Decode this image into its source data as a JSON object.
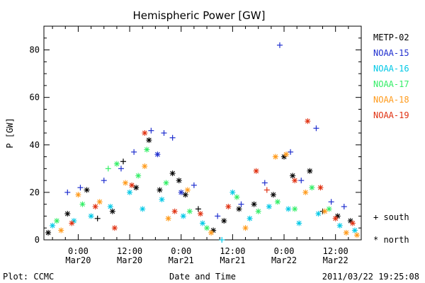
{
  "chart_data": {
    "type": "scatter",
    "title": "Hemispheric Power [GW]",
    "xlabel": "Date and Time",
    "ylabel": "P [GW]",
    "xlim": [
      "2011-03-19 16:00",
      "2011-03-22 18:00"
    ],
    "ylim": [
      0,
      90
    ],
    "y_ticks": [
      0,
      20,
      40,
      60,
      80
    ],
    "x_ticks": [
      {
        "x": "2011-03-20 00:00",
        "line1": "0:00",
        "line2": "Mar20"
      },
      {
        "x": "2011-03-20 12:00",
        "line1": "12:00",
        "line2": "Mar20"
      },
      {
        "x": "2011-03-21 00:00",
        "line1": "0:00",
        "line2": "Mar21"
      },
      {
        "x": "2011-03-21 12:00",
        "line1": "12:00",
        "line2": "Mar21"
      },
      {
        "x": "2011-03-22 00:00",
        "line1": "0:00",
        "line2": "Mar22"
      },
      {
        "x": "2011-03-22 12:00",
        "line1": "12:00",
        "line2": "Mar22"
      }
    ],
    "legend_position": "right",
    "marker_legend": [
      {
        "symbol": "+",
        "label": "south"
      },
      {
        "symbol": "*",
        "label": "north"
      }
    ],
    "series": [
      {
        "name": "METP-02",
        "color": "#000000",
        "points": [
          {
            "x": "2011-03-19 17:00",
            "y": 3,
            "m": "*"
          },
          {
            "x": "2011-03-19 21:30",
            "y": 11,
            "m": "*"
          },
          {
            "x": "2011-03-20 02:00",
            "y": 21,
            "m": "*"
          },
          {
            "x": "2011-03-20 04:30",
            "y": 9,
            "m": "+"
          },
          {
            "x": "2011-03-20 08:00",
            "y": 12,
            "m": "*"
          },
          {
            "x": "2011-03-20 10:30",
            "y": 33,
            "m": "+"
          },
          {
            "x": "2011-03-20 13:30",
            "y": 22,
            "m": "*"
          },
          {
            "x": "2011-03-20 16:30",
            "y": 42,
            "m": "*"
          },
          {
            "x": "2011-03-20 19:00",
            "y": 21,
            "m": "*"
          },
          {
            "x": "2011-03-20 22:00",
            "y": 28,
            "m": "*"
          },
          {
            "x": "2011-03-20 23:30",
            "y": 25,
            "m": "*"
          },
          {
            "x": "2011-03-21 01:00",
            "y": 19,
            "m": "*"
          },
          {
            "x": "2011-03-21 04:00",
            "y": 13,
            "m": "+"
          },
          {
            "x": "2011-03-21 07:30",
            "y": 4,
            "m": "*"
          },
          {
            "x": "2011-03-21 10:00",
            "y": 8,
            "m": "*"
          },
          {
            "x": "2011-03-21 13:30",
            "y": 13,
            "m": "*"
          },
          {
            "x": "2011-03-21 17:00",
            "y": 15,
            "m": "*"
          },
          {
            "x": "2011-03-21 21:30",
            "y": 19,
            "m": "*"
          },
          {
            "x": "2011-03-22 00:00",
            "y": 35,
            "m": "*"
          },
          {
            "x": "2011-03-22 02:00",
            "y": 27,
            "m": "*"
          },
          {
            "x": "2011-03-22 06:00",
            "y": 29,
            "m": "*"
          },
          {
            "x": "2011-03-22 09:00",
            "y": 12,
            "m": "+"
          },
          {
            "x": "2011-03-22 12:30",
            "y": 10,
            "m": "*"
          },
          {
            "x": "2011-03-22 15:30",
            "y": 8,
            "m": "*"
          }
        ]
      },
      {
        "name": "NOAA-15",
        "color": "#1f2fcf",
        "points": [
          {
            "x": "2011-03-19 21:30",
            "y": 20,
            "m": "+"
          },
          {
            "x": "2011-03-20 00:30",
            "y": 22,
            "m": "+"
          },
          {
            "x": "2011-03-20 06:00",
            "y": 25,
            "m": "+"
          },
          {
            "x": "2011-03-20 10:00",
            "y": 30,
            "m": "+"
          },
          {
            "x": "2011-03-20 13:00",
            "y": 37,
            "m": "+"
          },
          {
            "x": "2011-03-20 17:00",
            "y": 46,
            "m": "+"
          },
          {
            "x": "2011-03-20 18:30",
            "y": 36,
            "m": "*"
          },
          {
            "x": "2011-03-20 20:00",
            "y": 45,
            "m": "+"
          },
          {
            "x": "2011-03-20 22:00",
            "y": 43,
            "m": "+"
          },
          {
            "x": "2011-03-21 00:00",
            "y": 20,
            "m": "*"
          },
          {
            "x": "2011-03-21 03:00",
            "y": 23,
            "m": "+"
          },
          {
            "x": "2011-03-21 08:30",
            "y": 10,
            "m": "+"
          },
          {
            "x": "2011-03-21 14:00",
            "y": 15,
            "m": "+"
          },
          {
            "x": "2011-03-21 19:30",
            "y": 24,
            "m": "+"
          },
          {
            "x": "2011-03-21 23:00",
            "y": 82,
            "m": "+"
          },
          {
            "x": "2011-03-22 01:30",
            "y": 37,
            "m": "+"
          },
          {
            "x": "2011-03-22 04:00",
            "y": 25,
            "m": "+"
          },
          {
            "x": "2011-03-22 07:30",
            "y": 47,
            "m": "+"
          },
          {
            "x": "2011-03-22 11:00",
            "y": 16,
            "m": "+"
          },
          {
            "x": "2011-03-22 14:00",
            "y": 14,
            "m": "+"
          }
        ]
      },
      {
        "name": "NOAA-16",
        "color": "#00c8e6",
        "points": [
          {
            "x": "2011-03-19 18:00",
            "y": 6,
            "m": "*"
          },
          {
            "x": "2011-03-19 23:00",
            "y": 8,
            "m": "*"
          },
          {
            "x": "2011-03-20 03:00",
            "y": 10,
            "m": "*"
          },
          {
            "x": "2011-03-20 07:30",
            "y": 14,
            "m": "*"
          },
          {
            "x": "2011-03-20 12:00",
            "y": 20,
            "m": "*"
          },
          {
            "x": "2011-03-20 15:00",
            "y": 13,
            "m": "*"
          },
          {
            "x": "2011-03-20 19:30",
            "y": 17,
            "m": "*"
          },
          {
            "x": "2011-03-21 00:30",
            "y": 10,
            "m": "*"
          },
          {
            "x": "2011-03-21 05:00",
            "y": 7,
            "m": "*"
          },
          {
            "x": "2011-03-21 09:30",
            "y": 0,
            "m": "+"
          },
          {
            "x": "2011-03-21 12:00",
            "y": 20,
            "m": "*"
          },
          {
            "x": "2011-03-21 16:00",
            "y": 9,
            "m": "*"
          },
          {
            "x": "2011-03-21 20:30",
            "y": 14,
            "m": "*"
          },
          {
            "x": "2011-03-22 01:00",
            "y": 13,
            "m": "*"
          },
          {
            "x": "2011-03-22 03:30",
            "y": 7,
            "m": "*"
          },
          {
            "x": "2011-03-22 08:00",
            "y": 11,
            "m": "*"
          },
          {
            "x": "2011-03-22 13:00",
            "y": 6,
            "m": "*"
          },
          {
            "x": "2011-03-22 16:30",
            "y": 4,
            "m": "*"
          }
        ]
      },
      {
        "name": "NOAA-17",
        "color": "#33ee66",
        "points": [
          {
            "x": "2011-03-19 19:00",
            "y": 8,
            "m": "*"
          },
          {
            "x": "2011-03-20 01:00",
            "y": 15,
            "m": "*"
          },
          {
            "x": "2011-03-20 07:00",
            "y": 30,
            "m": "+"
          },
          {
            "x": "2011-03-20 09:00",
            "y": 32,
            "m": "*"
          },
          {
            "x": "2011-03-20 14:00",
            "y": 27,
            "m": "*"
          },
          {
            "x": "2011-03-20 16:00",
            "y": 38,
            "m": "*"
          },
          {
            "x": "2011-03-20 20:30",
            "y": 24,
            "m": "*"
          },
          {
            "x": "2011-03-21 02:00",
            "y": 12,
            "m": "*"
          },
          {
            "x": "2011-03-21 06:00",
            "y": 5,
            "m": "*"
          },
          {
            "x": "2011-03-21 13:00",
            "y": 18,
            "m": "*"
          },
          {
            "x": "2011-03-21 18:00",
            "y": 12,
            "m": "*"
          },
          {
            "x": "2011-03-21 22:30",
            "y": 16,
            "m": "*"
          },
          {
            "x": "2011-03-22 02:30",
            "y": 13,
            "m": "*"
          },
          {
            "x": "2011-03-22 06:30",
            "y": 22,
            "m": "*"
          },
          {
            "x": "2011-03-22 10:30",
            "y": 13,
            "m": "*"
          }
        ]
      },
      {
        "name": "NOAA-18",
        "color": "#ff9a1a",
        "points": [
          {
            "x": "2011-03-19 20:00",
            "y": 4,
            "m": "*"
          },
          {
            "x": "2011-03-20 00:00",
            "y": 19,
            "m": "*"
          },
          {
            "x": "2011-03-20 05:00",
            "y": 16,
            "m": "*"
          },
          {
            "x": "2011-03-20 11:00",
            "y": 24,
            "m": "*"
          },
          {
            "x": "2011-03-20 15:30",
            "y": 31,
            "m": "*"
          },
          {
            "x": "2011-03-20 21:00",
            "y": 9,
            "m": "*"
          },
          {
            "x": "2011-03-21 01:30",
            "y": 21,
            "m": "*"
          },
          {
            "x": "2011-03-21 07:00",
            "y": 3,
            "m": "*"
          },
          {
            "x": "2011-03-21 15:00",
            "y": 5,
            "m": "*"
          },
          {
            "x": "2011-03-21 22:00",
            "y": 35,
            "m": "*"
          },
          {
            "x": "2011-03-22 00:30",
            "y": 36,
            "m": "*"
          },
          {
            "x": "2011-03-22 05:00",
            "y": 20,
            "m": "*"
          },
          {
            "x": "2011-03-22 09:30",
            "y": 12,
            "m": "*"
          },
          {
            "x": "2011-03-22 14:30",
            "y": 3,
            "m": "*"
          },
          {
            "x": "2011-03-22 17:00",
            "y": 2,
            "m": "*"
          }
        ]
      },
      {
        "name": "NOAA-19",
        "color": "#e03010",
        "points": [
          {
            "x": "2011-03-19 22:30",
            "y": 7,
            "m": "*"
          },
          {
            "x": "2011-03-20 04:00",
            "y": 14,
            "m": "*"
          },
          {
            "x": "2011-03-20 08:30",
            "y": 5,
            "m": "*"
          },
          {
            "x": "2011-03-20 12:30",
            "y": 23,
            "m": "*"
          },
          {
            "x": "2011-03-20 15:30",
            "y": 45,
            "m": "*"
          },
          {
            "x": "2011-03-20 22:30",
            "y": 12,
            "m": "*"
          },
          {
            "x": "2011-03-21 04:30",
            "y": 11,
            "m": "*"
          },
          {
            "x": "2011-03-21 11:00",
            "y": 14,
            "m": "*"
          },
          {
            "x": "2011-03-21 17:30",
            "y": 29,
            "m": "*"
          },
          {
            "x": "2011-03-21 20:00",
            "y": 21,
            "m": "+"
          },
          {
            "x": "2011-03-22 02:30",
            "y": 25,
            "m": "*"
          },
          {
            "x": "2011-03-22 05:30",
            "y": 50,
            "m": "*"
          },
          {
            "x": "2011-03-22 08:30",
            "y": 22,
            "m": "*"
          },
          {
            "x": "2011-03-22 12:00",
            "y": 9,
            "m": "*"
          },
          {
            "x": "2011-03-22 16:00",
            "y": 7,
            "m": "*"
          }
        ]
      }
    ]
  },
  "footer": {
    "plot_credit": "Plot: CCMC",
    "timestamp": "2011/03/22 19:25:08"
  }
}
